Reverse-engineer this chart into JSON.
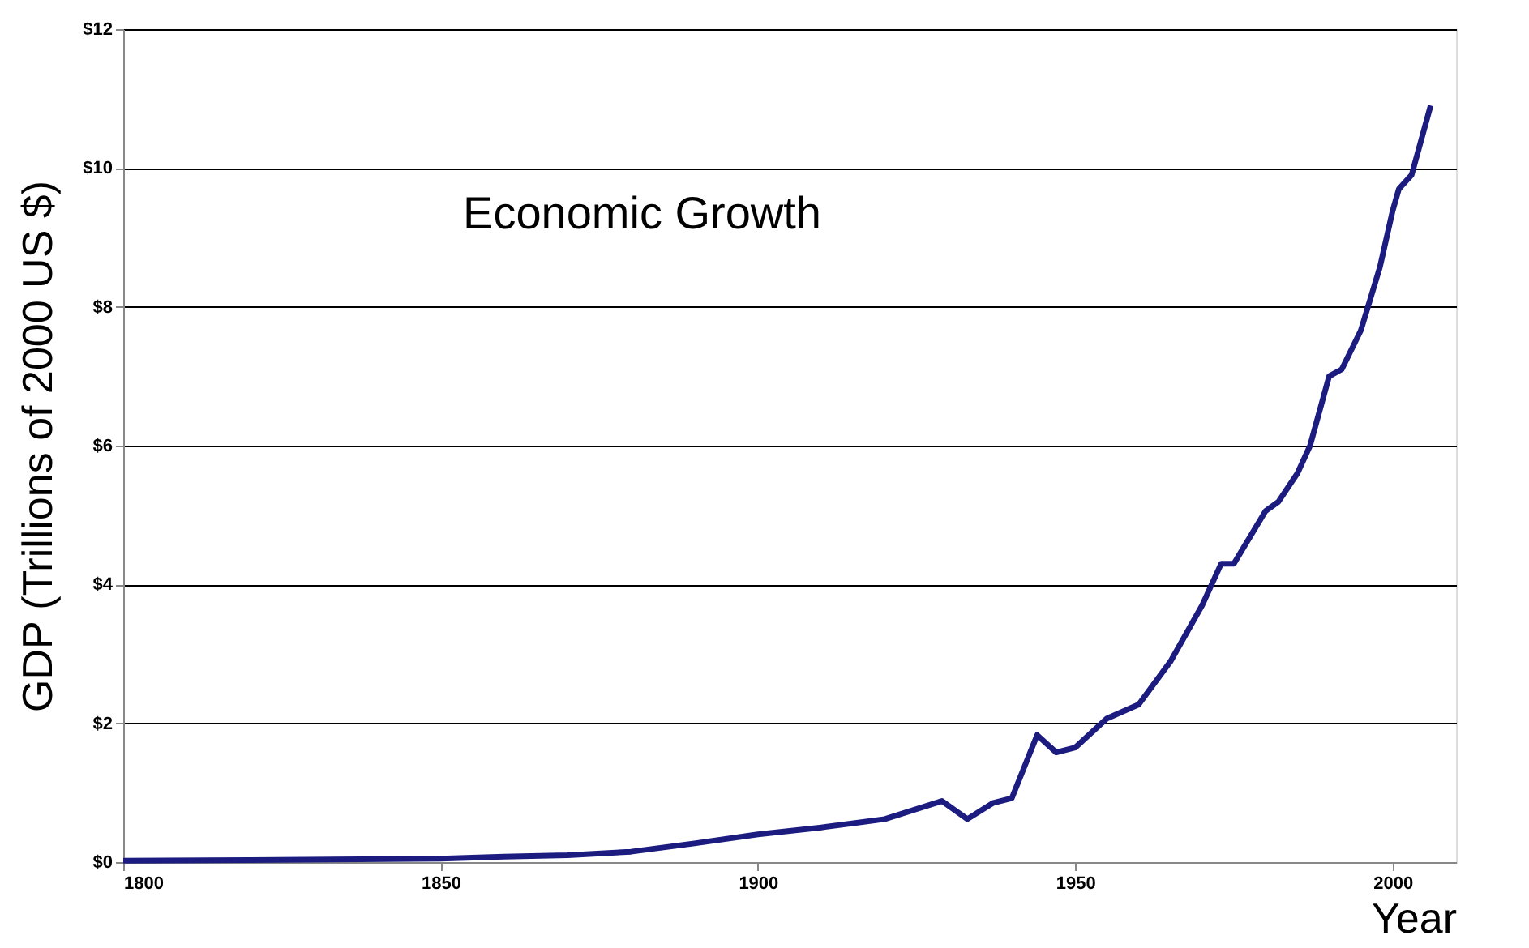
{
  "chart_data": {
    "type": "line",
    "ylabel": "GDP (Trillions of 2000 US $)",
    "xlabel": "Year",
    "annotations": [
      "Economic Growth"
    ],
    "x": [
      1800,
      1820,
      1850,
      1860,
      1870,
      1880,
      1890,
      1900,
      1910,
      1920,
      1929,
      1933,
      1937,
      1940,
      1944,
      1947,
      1950,
      1955,
      1960,
      1965,
      1970,
      1973,
      1975,
      1980,
      1982,
      1985,
      1987,
      1990,
      1992,
      1995,
      1998,
      2000,
      2001,
      2003,
      2006
    ],
    "series": [
      {
        "color": "#1b1b80",
        "values": [
          0.02,
          0.03,
          0.05,
          0.08,
          0.1,
          0.15,
          0.27,
          0.4,
          0.5,
          0.62,
          0.88,
          0.62,
          0.85,
          0.92,
          1.83,
          1.58,
          1.65,
          2.07,
          2.27,
          2.89,
          3.7,
          4.3,
          4.3,
          5.06,
          5.19,
          5.6,
          6.0,
          7.0,
          7.1,
          7.66,
          8.57,
          9.38,
          9.7,
          9.9,
          10.9
        ]
      }
    ],
    "xlim": [
      1800,
      2010
    ],
    "xticks": [
      1800,
      1850,
      1900,
      1950,
      2000
    ],
    "ylim": [
      0,
      12
    ],
    "yticks": [
      {
        "value": 0,
        "label": "$0"
      },
      {
        "value": 2,
        "label": "$2"
      },
      {
        "value": 4,
        "label": "$4"
      },
      {
        "value": 6,
        "label": "$6"
      },
      {
        "value": 8,
        "label": "$8"
      },
      {
        "value": 10,
        "label": "$10"
      },
      {
        "value": 12,
        "label": "$12"
      }
    ],
    "grid": "y",
    "legend": false,
    "marker": "none",
    "line_style": "solid"
  }
}
